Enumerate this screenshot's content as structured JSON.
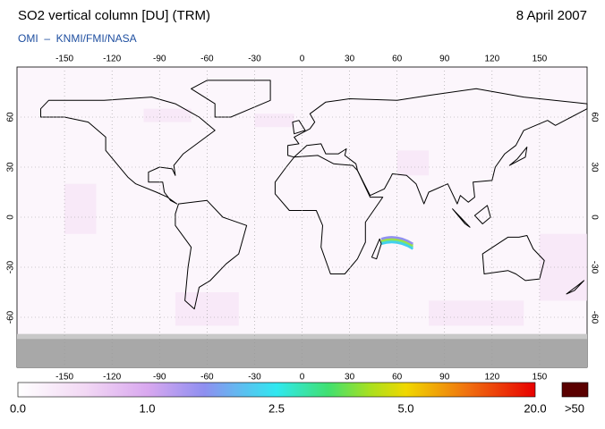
{
  "header": {
    "title": "SO2 vertical column [DU] (TRM)",
    "date": "8 April 2007",
    "source": "OMI  –  KNMI/FMI/NASA"
  },
  "map": {
    "lon_ticks": [
      -150,
      -120,
      -90,
      -60,
      -30,
      0,
      30,
      60,
      90,
      120,
      150
    ],
    "lat_ticks": [
      -60,
      -30,
      0,
      30,
      60
    ]
  },
  "colorbar": {
    "labels": [
      "0.0",
      "1.0",
      "2.5",
      "5.0",
      "20.0"
    ],
    "overflow_label": ">50"
  }
}
